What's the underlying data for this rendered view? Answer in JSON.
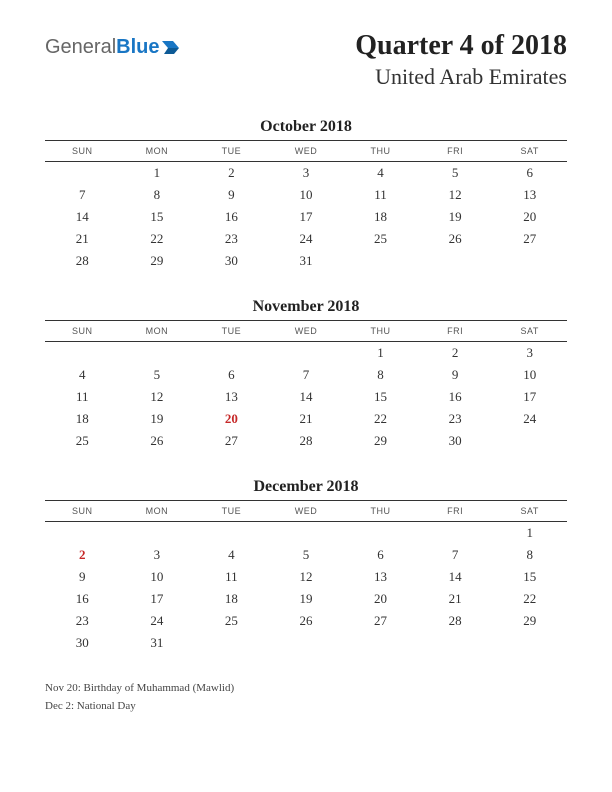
{
  "logo": {
    "general": "General",
    "blue": "Blue",
    "shape_color": "#1976c4"
  },
  "header": {
    "title": "Quarter 4 of 2018",
    "subtitle": "United Arab Emirates"
  },
  "daynames": [
    "SUN",
    "MON",
    "TUE",
    "WED",
    "THU",
    "FRI",
    "SAT"
  ],
  "months": [
    {
      "title": "October 2018",
      "weeks": [
        [
          "",
          "1",
          "2",
          "3",
          "4",
          "5",
          "6"
        ],
        [
          "7",
          "8",
          "9",
          "10",
          "11",
          "12",
          "13"
        ],
        [
          "14",
          "15",
          "16",
          "17",
          "18",
          "19",
          "20"
        ],
        [
          "21",
          "22",
          "23",
          "24",
          "25",
          "26",
          "27"
        ],
        [
          "28",
          "29",
          "30",
          "31",
          "",
          "",
          ""
        ]
      ],
      "holidays": []
    },
    {
      "title": "November 2018",
      "weeks": [
        [
          "",
          "",
          "",
          "",
          "1",
          "2",
          "3"
        ],
        [
          "4",
          "5",
          "6",
          "7",
          "8",
          "9",
          "10"
        ],
        [
          "11",
          "12",
          "13",
          "14",
          "15",
          "16",
          "17"
        ],
        [
          "18",
          "19",
          "20",
          "21",
          "22",
          "23",
          "24"
        ],
        [
          "25",
          "26",
          "27",
          "28",
          "29",
          "30",
          ""
        ]
      ],
      "holidays": [
        "20"
      ]
    },
    {
      "title": "December 2018",
      "weeks": [
        [
          "",
          "",
          "",
          "",
          "",
          "",
          "1"
        ],
        [
          "2",
          "3",
          "4",
          "5",
          "6",
          "7",
          "8"
        ],
        [
          "9",
          "10",
          "11",
          "12",
          "13",
          "14",
          "15"
        ],
        [
          "16",
          "17",
          "18",
          "19",
          "20",
          "21",
          "22"
        ],
        [
          "23",
          "24",
          "25",
          "26",
          "27",
          "28",
          "29"
        ],
        [
          "30",
          "31",
          "",
          "",
          "",
          "",
          ""
        ]
      ],
      "holidays": [
        "2"
      ]
    }
  ],
  "footnotes": [
    "Nov 20: Birthday of Muhammad (Mawlid)",
    "Dec 2: National Day"
  ],
  "colors": {
    "text": "#333333",
    "holiday": "#c62828",
    "border": "#333333",
    "logo_blue": "#1976c4",
    "background": "#ffffff"
  }
}
